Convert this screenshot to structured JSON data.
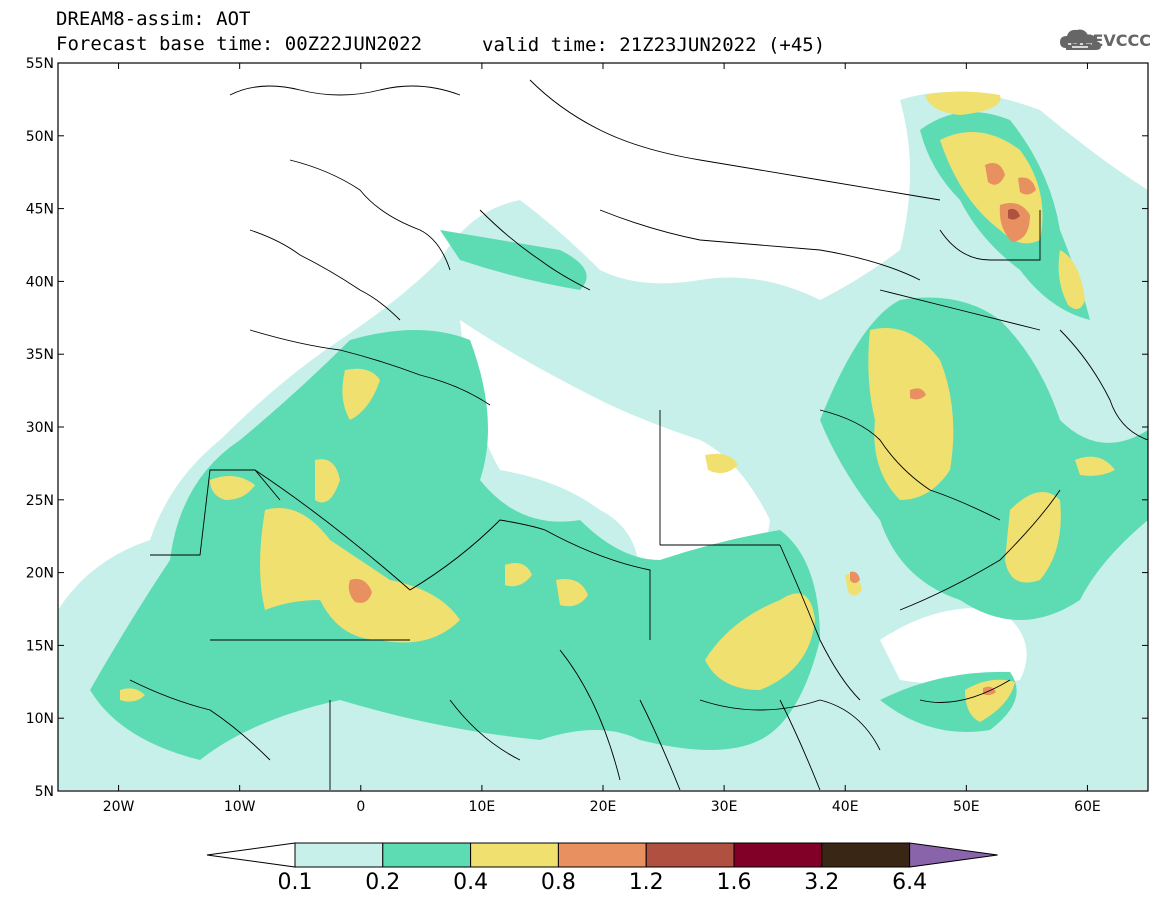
{
  "header": {
    "title": "DREAM8-assim: AOT",
    "base_time": "Forecast base time: 00Z22JUN2022",
    "valid_time": "valid time: 21Z23JUN2022 (+45)"
  },
  "logo": {
    "text": "SEEVCCC",
    "icon": "cloud-icon"
  },
  "axes": {
    "lon_labels": [
      "20W",
      "10W",
      "0",
      "10E",
      "20E",
      "30E",
      "40E",
      "50E",
      "60E"
    ],
    "lat_labels": [
      "55N",
      "50N",
      "45N",
      "40N",
      "35N",
      "30N",
      "25N",
      "20N",
      "15N",
      "10N",
      "5N"
    ],
    "lon_range": [
      -25,
      65
    ],
    "lat_range": [
      5,
      55
    ]
  },
  "colorbar": {
    "labels": [
      "0.1",
      "0.2",
      "0.4",
      "0.8",
      "1.2",
      "1.6",
      "3.2",
      "6.4"
    ],
    "colors": [
      "#c8f0ea",
      "#5ddcb4",
      "#f0e070",
      "#e89060",
      "#b05040",
      "#800028",
      "#3a2614",
      "#8a64aa"
    ]
  }
}
